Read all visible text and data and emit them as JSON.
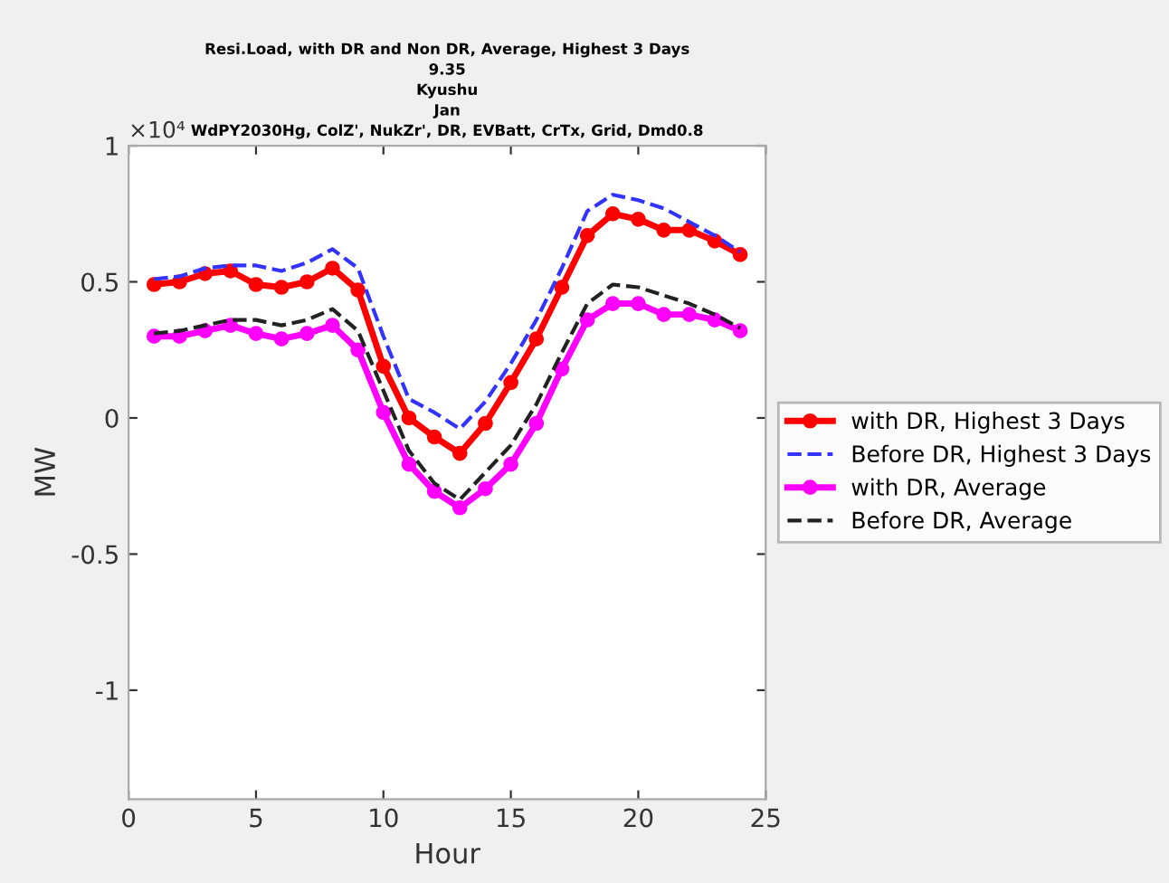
{
  "chart_data": {
    "type": "line",
    "title": "Resi.Load, with DR and Non DR, Average, Highest 3 Days\n9.35\nKyushu\nJan\nWdPY2030Hg, ColZ', NukZr', DR, EVBatt, CrTx, Grid, Dmd0.8",
    "xlabel": "Hour",
    "ylabel": "MW",
    "annotations": [
      "×10⁴"
    ],
    "x": [
      1,
      2,
      3,
      4,
      5,
      6,
      7,
      8,
      9,
      10,
      11,
      12,
      13,
      14,
      15,
      16,
      17,
      18,
      19,
      20,
      21,
      22,
      23,
      24
    ],
    "xlim": [
      0,
      25
    ],
    "xticks": [
      0,
      5,
      10,
      15,
      20,
      25
    ],
    "ylim": [
      -1.4,
      1
    ],
    "yticks": [
      -1,
      -0.5,
      0,
      0.5,
      1
    ],
    "grid": false,
    "legend": "right",
    "series": [
      {
        "name": "with DR, Highest 3 Days",
        "color": "#ff0000",
        "marker": "circle",
        "line_style": "solid",
        "values": [
          0.49,
          0.5,
          0.53,
          0.54,
          0.49,
          0.48,
          0.5,
          0.55,
          0.47,
          0.19,
          0.0,
          -0.07,
          -0.13,
          -0.02,
          0.13,
          0.29,
          0.48,
          0.67,
          0.75,
          0.73,
          0.69,
          0.69,
          0.65,
          0.6
        ]
      },
      {
        "name": "Before DR, Highest 3 Days",
        "color": "#3333ff",
        "marker": "none",
        "line_style": "dashed",
        "values": [
          0.51,
          0.52,
          0.55,
          0.56,
          0.56,
          0.54,
          0.57,
          0.62,
          0.55,
          0.3,
          0.07,
          0.02,
          -0.04,
          0.06,
          0.2,
          0.36,
          0.55,
          0.76,
          0.82,
          0.8,
          0.77,
          0.72,
          0.67,
          0.61
        ]
      },
      {
        "name": "with DR, Average",
        "color": "#ff00ff",
        "marker": "circle",
        "line_style": "solid",
        "values": [
          0.3,
          0.3,
          0.32,
          0.34,
          0.31,
          0.29,
          0.31,
          0.34,
          0.25,
          0.02,
          -0.17,
          -0.27,
          -0.33,
          -0.26,
          -0.17,
          -0.02,
          0.18,
          0.36,
          0.42,
          0.42,
          0.38,
          0.38,
          0.36,
          0.32
        ]
      },
      {
        "name": "Before DR, Average",
        "color": "#222222",
        "marker": "none",
        "line_style": "dashed",
        "values": [
          0.31,
          0.32,
          0.34,
          0.36,
          0.36,
          0.34,
          0.36,
          0.4,
          0.32,
          0.1,
          -0.12,
          -0.24,
          -0.3,
          -0.2,
          -0.1,
          0.05,
          0.24,
          0.42,
          0.49,
          0.48,
          0.45,
          0.42,
          0.38,
          0.33
        ]
      }
    ]
  }
}
